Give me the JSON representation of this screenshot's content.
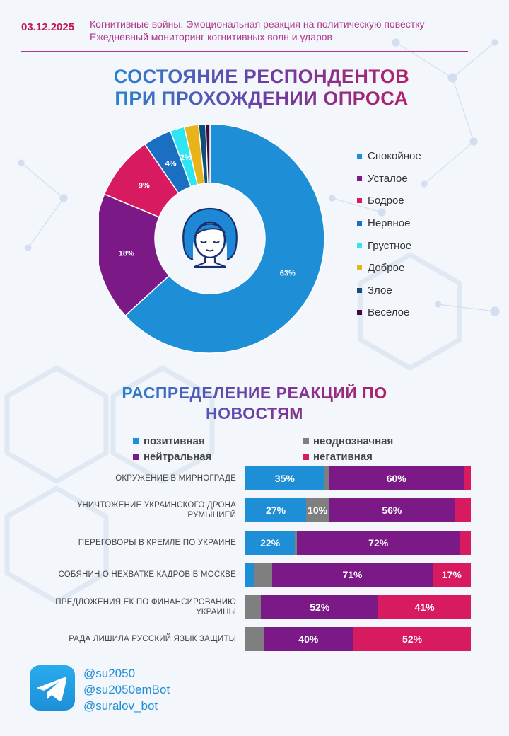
{
  "header": {
    "date": "03.12.2025",
    "line1": "Когнитивные войны. Эмоциональная реакция на политическую повестку",
    "line2": "Ежедневный мониторинг когнитивных волн и ударов"
  },
  "icons": {
    "face": "woman-calm-face-icon",
    "telegram": "telegram-icon"
  },
  "chart_data": [
    {
      "type": "pie",
      "title_lines": [
        "СОСТОЯНИЕ РЕСПОНДЕНТОВ",
        "ПРИ ПРОХОЖДЕНИИ ОПРОСА"
      ],
      "categories": [
        "Спокойное",
        "Усталое",
        "Бодрое",
        "Нервное",
        "Грустное",
        "Доброе",
        "Злое",
        "Веселое"
      ],
      "values": [
        63,
        18,
        9,
        4,
        2,
        2,
        1,
        0.6
      ],
      "labels": [
        "63%",
        "18%",
        "9%",
        "4%",
        "2%",
        "",
        "",
        ""
      ],
      "colors": [
        "#1e8fd6",
        "#7b1a86",
        "#d81b60",
        "#1a6fc2",
        "#2ee6f2",
        "#e8b419",
        "#0d4f7a",
        "#3d0b3f"
      ],
      "legend_position": "right"
    },
    {
      "type": "bar",
      "orientation": "horizontal-stacked-100",
      "title_lines": [
        "РАСПРЕДЕЛЕНИЕ РЕАКЦИЙ ПО",
        "НОВОСТЯМ"
      ],
      "series_names": [
        "позитивная",
        "неоднозначная",
        "нейтральная",
        "негативная"
      ],
      "colors": [
        "#1e8fd6",
        "#7f7f7f",
        "#7b1a86",
        "#d81b60"
      ],
      "legend_order": [
        0,
        1,
        2,
        3
      ],
      "categories": [
        "Окружение в Мирнограде",
        "Уничтожение украинского дрона Румынией",
        "Переговоры в Кремле по Украине",
        "Собянин о нехватке кадров в Москве",
        "Предложения ЕК по финансированию Украины",
        "Рада лишила русский язык защиты"
      ],
      "rows": [
        {
          "values": [
            35,
            2,
            60,
            3
          ],
          "labels": [
            "35%",
            "",
            "60%",
            ""
          ]
        },
        {
          "values": [
            27,
            10,
            56,
            7
          ],
          "labels": [
            "27%",
            "10%",
            "56%",
            ""
          ]
        },
        {
          "values": [
            22,
            1,
            72,
            5
          ],
          "labels": [
            "22%",
            "",
            "72%",
            ""
          ]
        },
        {
          "values": [
            4,
            8,
            71,
            17
          ],
          "labels": [
            "",
            "",
            "71%",
            "17%"
          ]
        },
        {
          "values": [
            0,
            7,
            52,
            41
          ],
          "labels": [
            "",
            "",
            "52%",
            "41%"
          ]
        },
        {
          "values": [
            0,
            8,
            40,
            52
          ],
          "labels": [
            "",
            "",
            "40%",
            "52%"
          ]
        }
      ]
    }
  ],
  "footer": {
    "handles": [
      "@su2050",
      "@su2050emBot",
      "@suralov_bot"
    ]
  }
}
